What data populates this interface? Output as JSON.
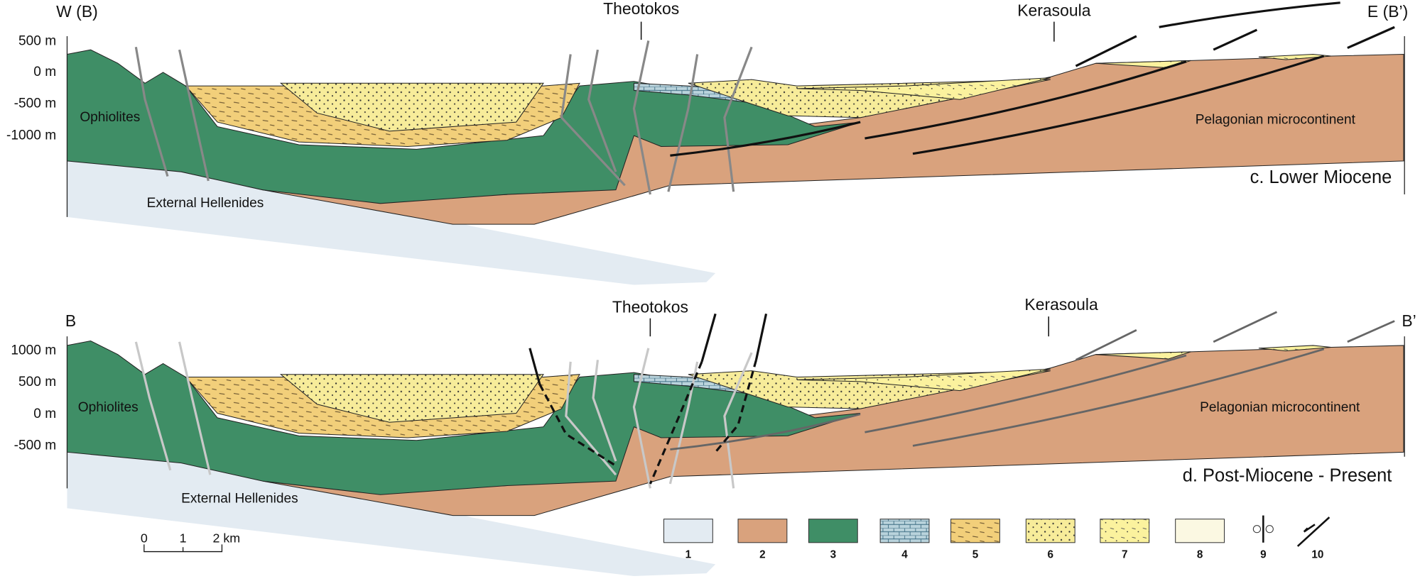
{
  "panels": [
    {
      "west_label": "W (B)",
      "east_label": "E (B’)",
      "localities": [
        "Theotokos",
        "Kerasoula"
      ],
      "elevation_ticks": [
        "500 m",
        "0 m",
        "-500 m",
        "-1000 m"
      ],
      "units": [
        "Ophiolites",
        "External Hellenides",
        "Pelagonian microcontinent"
      ],
      "caption": "c. Lower Miocene"
    },
    {
      "west_label": "B",
      "east_label": "B’",
      "localities": [
        "Theotokos",
        "Kerasoula"
      ],
      "elevation_ticks": [
        "1000 m",
        "500 m",
        "0 m",
        "-500 m"
      ],
      "units": [
        "Ophiolites",
        "External Hellenides",
        "Pelagonian microcontinent"
      ],
      "caption": "d. Post-Miocene - Present"
    }
  ],
  "scale_bar": [
    "0",
    "1",
    "2 km"
  ],
  "legend": [
    "1",
    "2",
    "3",
    "4",
    "5",
    "6",
    "7",
    "8",
    "9",
    "10"
  ]
}
